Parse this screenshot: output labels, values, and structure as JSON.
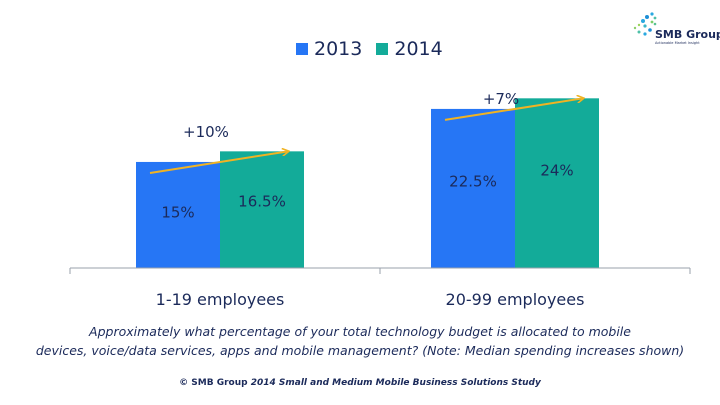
{
  "logo": {
    "name": "SMB Group",
    "tagline": "Actionable Market Insight"
  },
  "chart_data": {
    "type": "bar",
    "title": "",
    "xlabel": "",
    "ylabel": "",
    "ylim": [
      0,
      25
    ],
    "grid": false,
    "legend_position": "top-center",
    "categories": [
      "1-19 employees",
      "20-99 employees"
    ],
    "series": [
      {
        "name": "2013",
        "color": "#2676f5",
        "values": [
          15,
          22.5
        ],
        "labels": [
          "15%",
          "22.5%"
        ]
      },
      {
        "name": "2014",
        "color": "#13ab99",
        "values": [
          16.5,
          24
        ],
        "labels": [
          "16.5%",
          "24%"
        ]
      }
    ],
    "annotations": [
      {
        "category": "1-19 employees",
        "text": "+10%",
        "arrow_color": "#f0b323"
      },
      {
        "category": "20-99 employees",
        "text": "+7%",
        "arrow_color": "#f0b323"
      }
    ]
  },
  "question": {
    "line1": "Approximately what percentage of your total technology budget is allocated to mobile",
    "line2": "devices, voice/data services, apps and mobile management? (Note: Median spending increases shown)"
  },
  "source": {
    "prefix": "© SMB Group",
    "title": "2014 Small and Medium Mobile Business Solutions Study"
  }
}
